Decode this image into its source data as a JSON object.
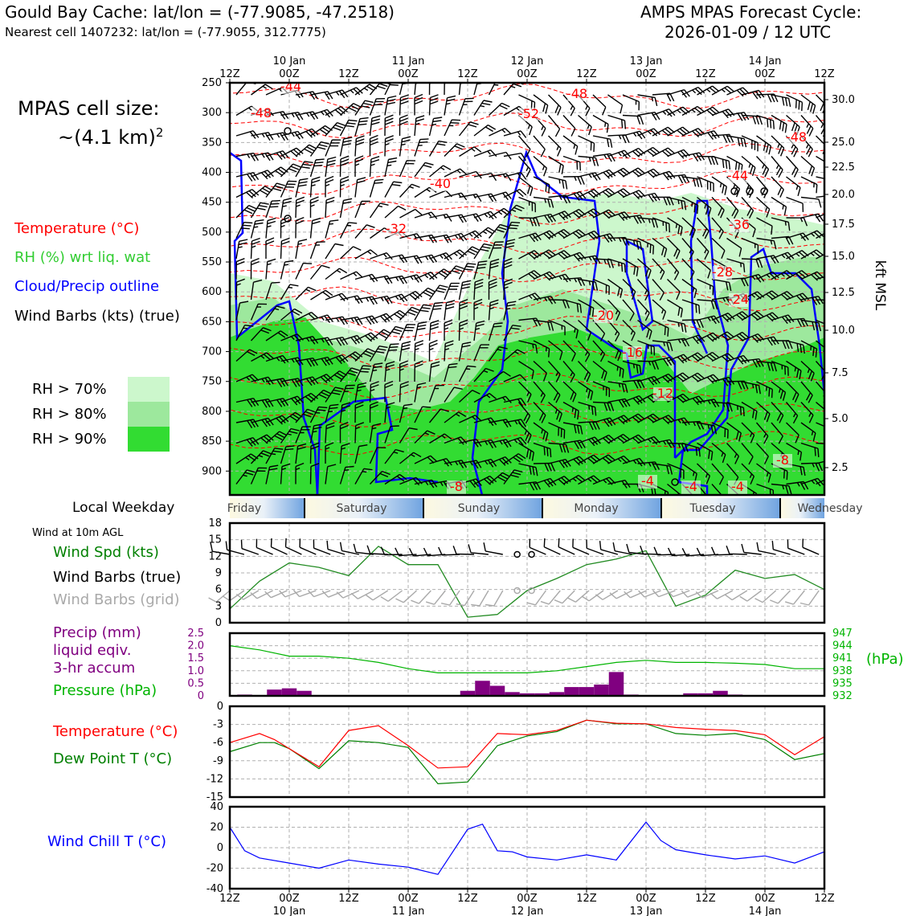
{
  "header": {
    "title_left": "Gould Bay Cache: lat/lon = (-77.9085, -47.2518)",
    "subtitle_left": "Nearest cell 1407232: lat/lon = (-77.9055, 312.7775)",
    "title_right_1": "AMPS MPAS Forecast Cycle:",
    "title_right_2": "2026-01-09 / 12 UTC"
  },
  "cell_size": {
    "label": "MPAS cell size:",
    "value": "~(4.1 km)",
    "sup": "2"
  },
  "legend_main": {
    "temperature": "Temperature (°C)",
    "rh": "RH (%) wrt liq. wat",
    "cloud": "Cloud/Precip outline",
    "wind": "Wind Barbs (kts) (true)"
  },
  "rh_legend": {
    "items": [
      {
        "label": "RH > 70%",
        "color": "#ccf7cc"
      },
      {
        "label": "RH > 80%",
        "color": "#9de89d"
      },
      {
        "label": "RH > 90%",
        "color": "#32dc32"
      }
    ]
  },
  "weekday": {
    "label": "Local Weekday",
    "days": [
      "Friday",
      "Saturday",
      "Sunday",
      "Monday",
      "Tuesday",
      "Wednesday"
    ]
  },
  "legend_wind": {
    "note": "Wind at 10m AGL",
    "speed": "Wind Spd (kts)",
    "barbs_true": "Wind Barbs (true)",
    "barbs_grid": "Wind Barbs (grid)"
  },
  "legend_precip": {
    "l1": "Precip (mm)",
    "l2": "liquid eqiv.",
    "l3": "3-hr accum",
    "pressure": "Pressure (hPa)"
  },
  "legend_temp": {
    "temp": "Temperature (°C)",
    "dew": "Dew Point T (°C)"
  },
  "legend_chill": {
    "chill": "Wind Chill T (°C)"
  },
  "colors": {
    "temperature": "#ff0000",
    "dewpoint": "#008000",
    "wind_speed": "#228b22",
    "precip": "#800080",
    "pressure": "#00b400",
    "wind_chill": "#0000ff",
    "cloud_outline": "#0000ff",
    "rh_legend_text": "#32cd32",
    "grid_barbs": "#a9a9a9"
  },
  "chart_data": [
    {
      "type": "area",
      "name": "Time-height cross section",
      "time_ticks": [
        "12Z",
        "00Z",
        "12Z",
        "00Z",
        "12Z",
        "00Z",
        "12Z",
        "00Z",
        "12Z",
        "00Z",
        "12Z"
      ],
      "date_labels": [
        "10 Jan",
        "11 Jan",
        "12 Jan",
        "13 Jan",
        "14 Jan"
      ],
      "y_left_ticks": [
        250,
        300,
        350,
        400,
        450,
        500,
        550,
        600,
        650,
        700,
        750,
        800,
        850,
        900
      ],
      "y_left_label": "",
      "y_right_ticks": [
        "30.0",
        "25.0",
        "22.5",
        "20.0",
        "17.5",
        "15.0",
        "12.5",
        "10.0",
        "7.5",
        "5.0",
        "2.5"
      ],
      "y_right_label": "kft MSL",
      "ylim": [
        940,
        250
      ],
      "temperature_contour_labels": [
        "-44",
        "-48",
        "-48",
        "-52",
        "-48",
        "-44",
        "-40",
        "-36",
        "-32",
        "-28",
        "-24",
        "-20",
        "-16",
        "-12",
        "-8",
        "-8",
        "-4",
        "-4",
        "-4"
      ]
    },
    {
      "type": "line",
      "name": "10m wind",
      "ylim": [
        0,
        18
      ],
      "yticks": [
        0,
        3,
        6,
        9,
        12,
        15,
        18
      ],
      "hours": [
        0,
        6,
        12,
        18,
        24,
        30,
        36,
        42,
        48,
        54,
        60,
        66,
        72,
        78,
        84,
        90,
        96,
        102,
        108,
        114,
        120
      ],
      "series": [
        {
          "values": [
            2.5,
            7.5,
            10.8,
            10.0,
            8.5,
            13.8,
            10.5,
            10.5,
            1.0,
            1.5,
            5.8,
            8.0,
            10.5,
            11.5,
            13.0,
            3.0,
            5.0,
            9.5,
            8.0,
            8.7,
            6.0
          ]
        }
      ]
    },
    {
      "type": "bar",
      "name": "Precipitation and pressure",
      "precip_ylim": [
        0,
        2.5
      ],
      "precip_yticks": [
        "0",
        "0.5",
        "1.0",
        "1.5",
        "2.0",
        "2.5"
      ],
      "precip_hours": [
        3,
        9,
        12,
        15,
        48,
        51,
        54,
        57,
        60,
        63,
        66,
        69,
        72,
        75,
        78,
        81,
        93,
        96,
        99,
        102
      ],
      "precip_values": [
        0.05,
        0.25,
        0.3,
        0.2,
        0.2,
        0.6,
        0.4,
        0.15,
        0.1,
        0.1,
        0.15,
        0.35,
        0.35,
        0.45,
        0.95,
        0.05,
        0.1,
        0.1,
        0.2,
        0.05
      ],
      "pressure_ylim": [
        932,
        947
      ],
      "pressure_yticks": [
        "947",
        "944",
        "941",
        "938",
        "935",
        "932"
      ],
      "pressure_ylabel": "(hPa)",
      "pressure_hours": [
        0,
        6,
        12,
        18,
        24,
        30,
        36,
        42,
        48,
        54,
        60,
        66,
        72,
        78,
        84,
        90,
        96,
        102,
        108,
        114,
        120
      ],
      "pressure_values": [
        944.0,
        943.0,
        941.5,
        941.5,
        941.0,
        940.0,
        938.5,
        937.5,
        937.5,
        937.5,
        937.5,
        938.0,
        939.0,
        940.0,
        940.5,
        940.0,
        940.0,
        939.8,
        939.5,
        938.5,
        938.5
      ]
    },
    {
      "type": "line",
      "name": "Temperature and dew point",
      "ylim": [
        -15,
        0
      ],
      "yticks": [
        0,
        -3,
        -6,
        -9,
        -12,
        -15
      ],
      "hours": [
        0,
        6,
        9,
        12,
        18,
        24,
        30,
        36,
        42,
        48,
        54,
        60,
        66,
        72,
        78,
        84,
        90,
        96,
        102,
        108,
        114,
        120
      ],
      "series": [
        {
          "name": "Temperature",
          "values": [
            -6.0,
            -4.5,
            -5.5,
            -7.0,
            -10.0,
            -4.0,
            -3.2,
            -6.5,
            -10.2,
            -10.0,
            -4.5,
            -4.7,
            -4.0,
            -2.3,
            -2.8,
            -2.9,
            -3.5,
            -3.8,
            -4.0,
            -4.7,
            -8.0,
            -5.0
          ]
        },
        {
          "name": "Dew Point",
          "values": [
            -7.5,
            -6.0,
            -6.0,
            -7.0,
            -10.3,
            -5.7,
            -6.0,
            -6.8,
            -12.8,
            -12.5,
            -6.5,
            -4.9,
            -4.2,
            -2.3,
            -2.9,
            -2.9,
            -4.5,
            -4.8,
            -4.5,
            -5.5,
            -8.8,
            -7.8
          ]
        }
      ]
    },
    {
      "type": "line",
      "name": "Wind chill",
      "ylim": [
        -40,
        40
      ],
      "yticks": [
        40,
        20,
        0,
        -20,
        -40
      ],
      "hours": [
        0,
        3,
        6,
        12,
        18,
        24,
        30,
        36,
        42,
        48,
        51,
        54,
        57,
        60,
        66,
        72,
        78,
        84,
        87,
        90,
        96,
        102,
        108,
        114,
        120
      ],
      "series": [
        {
          "name": "Wind Chill",
          "values": [
            20,
            -3,
            -10,
            -15,
            -20,
            -12,
            -16,
            -19,
            -26,
            18,
            23,
            -3,
            -4,
            -9,
            -12,
            -7,
            -12,
            25,
            7,
            -2,
            -7,
            -11,
            -8,
            -15,
            -4
          ]
        }
      ]
    }
  ]
}
